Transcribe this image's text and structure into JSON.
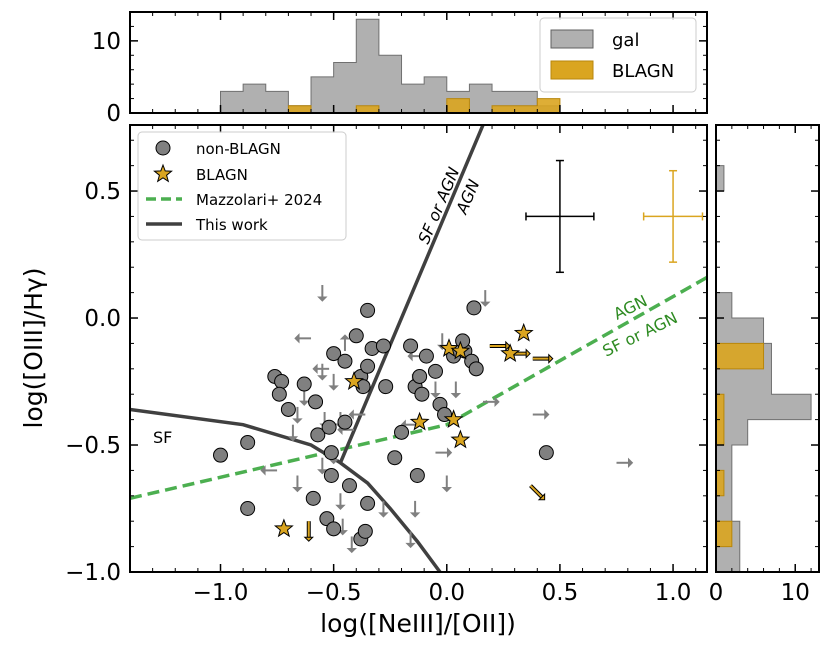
{
  "chart_data": {
    "type": "scatter",
    "main": {
      "xlabel": "log([NeIII]/[OII])",
      "ylabel": "log([OIII]/Hγ)",
      "xlim": [
        -1.4,
        1.15
      ],
      "ylim": [
        -1.0,
        0.76
      ],
      "xticks": [
        -1.0,
        -0.5,
        0.0,
        0.5,
        1.0
      ],
      "xtick_labels": [
        "−1.0",
        "−0.5",
        "0.0",
        "0.5",
        "1.0"
      ],
      "yticks": [
        -1.0,
        -0.5,
        0.0,
        0.5
      ],
      "ytick_labels": [
        "−1.0",
        "−0.5",
        "0.0",
        "0.5"
      ],
      "region_labels": {
        "sf": "SF",
        "sf_or_agn": "SF or AGN",
        "agn": "AGN"
      },
      "legend": {
        "position": "upper-left",
        "entries": [
          "non-BLAGN",
          "BLAGN",
          "Mazzolari+ 2024",
          "This work"
        ]
      },
      "series": [
        {
          "name": "non-BLAGN",
          "marker": "circle",
          "color": "#808080",
          "points": [
            [
              -1.0,
              -0.54
            ],
            [
              -0.88,
              -0.49
            ],
            [
              -0.88,
              -0.75
            ],
            [
              -0.76,
              -0.23
            ],
            [
              -0.73,
              -0.25
            ],
            [
              -0.74,
              -0.3
            ],
            [
              -0.7,
              -0.36
            ],
            [
              -0.63,
              -0.26
            ],
            [
              -0.58,
              -0.33
            ],
            [
              -0.57,
              -0.46
            ],
            [
              -0.59,
              -0.71
            ],
            [
              -0.51,
              -0.62
            ],
            [
              -0.51,
              -0.53
            ],
            [
              -0.52,
              -0.43
            ],
            [
              -0.53,
              -0.79
            ],
            [
              -0.5,
              -0.83
            ],
            [
              -0.5,
              -0.14
            ],
            [
              -0.45,
              -0.17
            ],
            [
              -0.45,
              -0.41
            ],
            [
              -0.43,
              -0.66
            ],
            [
              -0.38,
              -0.23
            ],
            [
              -0.37,
              -0.27
            ],
            [
              -0.35,
              -0.19
            ],
            [
              -0.4,
              -0.07
            ],
            [
              -0.38,
              -0.87
            ],
            [
              -0.36,
              -0.84
            ],
            [
              -0.35,
              -0.73
            ],
            [
              -0.33,
              -0.12
            ],
            [
              -0.28,
              -0.11
            ],
            [
              -0.27,
              -0.27
            ],
            [
              -0.23,
              -0.55
            ],
            [
              -0.2,
              -0.45
            ],
            [
              -0.14,
              -0.27
            ],
            [
              -0.12,
              -0.23
            ],
            [
              -0.16,
              -0.11
            ],
            [
              -0.13,
              -0.62
            ],
            [
              -0.11,
              -0.3
            ],
            [
              -0.09,
              -0.15
            ],
            [
              -0.05,
              -0.21
            ],
            [
              -0.03,
              -0.34
            ],
            [
              -0.01,
              -0.38
            ],
            [
              0.03,
              -0.15
            ],
            [
              0.08,
              -0.13
            ],
            [
              0.11,
              -0.17
            ],
            [
              0.13,
              -0.2
            ],
            [
              0.07,
              -0.09
            ],
            [
              0.12,
              0.04
            ],
            [
              0.44,
              -0.53
            ],
            [
              -0.35,
              0.03
            ]
          ]
        },
        {
          "name": "BLAGN",
          "marker": "star",
          "color": "#DAA520",
          "points": [
            [
              -0.72,
              -0.83
            ],
            [
              -0.41,
              -0.25
            ],
            [
              -0.12,
              -0.41
            ],
            [
              0.03,
              -0.4
            ],
            [
              0.01,
              -0.12
            ],
            [
              0.06,
              -0.13
            ],
            [
              0.06,
              -0.48
            ],
            [
              0.28,
              -0.14
            ],
            [
              0.34,
              -0.06
            ]
          ]
        },
        {
          "name": "non-BLAGN limits",
          "marker": "arrow",
          "color": "#808080",
          "points": [
            [
              -0.68,
              -0.42,
              "down"
            ],
            [
              -0.66,
              -0.62,
              "down"
            ],
            [
              -0.63,
              -0.28,
              "down"
            ],
            [
              -0.66,
              -0.35,
              "down"
            ],
            [
              -0.6,
              -0.08,
              "left"
            ],
            [
              -0.55,
              -0.18,
              "down"
            ],
            [
              -0.52,
              -0.2,
              "left"
            ],
            [
              -0.54,
              -0.37,
              "down"
            ],
            [
              -0.47,
              -0.37,
              "down"
            ],
            [
              -0.5,
              -0.51,
              "down"
            ],
            [
              -0.47,
              -0.69,
              "down"
            ],
            [
              -0.46,
              -0.79,
              "down"
            ],
            [
              -0.42,
              -0.86,
              "down"
            ],
            [
              -0.55,
              0.13,
              "down"
            ],
            [
              -0.5,
              -0.22,
              "down"
            ],
            [
              -0.45,
              -0.13,
              "up"
            ],
            [
              -0.41,
              -0.44,
              "left"
            ],
            [
              -0.36,
              -0.38,
              "left"
            ],
            [
              -0.28,
              -0.72,
              "down"
            ],
            [
              -0.15,
              -0.22,
              "down"
            ],
            [
              -0.13,
              -0.42,
              "left"
            ],
            [
              -0.14,
              -0.72,
              "down"
            ],
            [
              -0.16,
              -0.84,
              "down"
            ],
            [
              -0.1,
              -0.15,
              "left"
            ],
            [
              -0.05,
              -0.25,
              "down"
            ],
            [
              -0.02,
              -0.06,
              "down"
            ],
            [
              -0.05,
              -0.53,
              "right"
            ],
            [
              0.0,
              -0.62,
              "down"
            ],
            [
              0.04,
              -0.25,
              "down"
            ],
            [
              0.16,
              -0.33,
              "right"
            ],
            [
              0.17,
              0.11,
              "down"
            ],
            [
              0.38,
              -0.38,
              "right"
            ],
            [
              0.75,
              -0.57,
              "right"
            ],
            [
              -0.55,
              -0.55,
              "down"
            ],
            [
              -0.75,
              -0.6,
              "left"
            ]
          ]
        },
        {
          "name": "BLAGN limits",
          "marker": "arrow",
          "color": "#DAA520",
          "points": [
            [
              0.19,
              -0.11,
              "right"
            ],
            [
              0.28,
              -0.14,
              "right"
            ],
            [
              0.38,
              -0.16,
              "right"
            ],
            [
              -0.61,
              -0.8,
              "down"
            ],
            [
              0.37,
              -0.66,
              "down-right"
            ]
          ]
        }
      ],
      "lines": [
        {
          "name": "Mazzolari+ 2024",
          "style": "dashed",
          "color": "#4caf50",
          "x": [
            -1.4,
            0.0,
            1.15
          ],
          "y": [
            -0.71,
            -0.42,
            0.16
          ]
        },
        {
          "name": "This work",
          "style": "solid",
          "color": "#404040",
          "segments": [
            {
              "x": [
                -1.4,
                -0.9,
                -0.6,
                -0.47,
                -0.35,
                -0.25,
                -0.13,
                -0.03
              ],
              "y": [
                -0.36,
                -0.42,
                -0.5,
                -0.57,
                -0.65,
                -0.75,
                -0.88,
                -1.0
              ]
            },
            {
              "x": [
                -0.47,
                0.16
              ],
              "y": [
                -0.57,
                0.76
              ]
            }
          ]
        }
      ],
      "errorbars": [
        {
          "x": 0.5,
          "y": 0.4,
          "xerr": 0.15,
          "yerr": 0.22,
          "color": "#000000"
        },
        {
          "x": 1.0,
          "y": 0.4,
          "xerr": 0.13,
          "yerr": 0.18,
          "color": "#DAA520"
        }
      ]
    },
    "top_hist": {
      "type": "histogram",
      "yticks": [
        0,
        10
      ],
      "ytick_labels": [
        "0",
        "10"
      ],
      "ylim": [
        0,
        14
      ],
      "bin_edges": [
        -1.0,
        -0.9,
        -0.8,
        -0.7,
        -0.6,
        -0.5,
        -0.4,
        -0.3,
        -0.2,
        -0.1,
        0.0,
        0.1,
        0.2,
        0.3,
        0.4,
        0.5
      ],
      "series": [
        {
          "name": "gal",
          "color": "#B0B0B0",
          "values": [
            3,
            4,
            3,
            1,
            5,
            7,
            13,
            8,
            4,
            5,
            3,
            4,
            3,
            3,
            1
          ]
        },
        {
          "name": "BLAGN",
          "color": "#DAA520",
          "values": [
            0,
            0,
            0,
            1,
            0,
            0,
            1,
            0,
            0,
            0,
            2,
            0,
            1,
            1,
            2
          ]
        }
      ],
      "legend": {
        "position": "upper-right",
        "entries": [
          "gal",
          "BLAGN"
        ]
      }
    },
    "right_hist": {
      "type": "histogram",
      "orientation": "horizontal",
      "xticks": [
        0,
        10
      ],
      "xtick_labels": [
        "0",
        "10"
      ],
      "xlim": [
        0,
        13
      ],
      "bin_edges": [
        -1.0,
        -0.9,
        -0.8,
        -0.7,
        -0.6,
        -0.5,
        -0.4,
        -0.3,
        -0.2,
        -0.1,
        0.0,
        0.1,
        0.2,
        0.3,
        0.4,
        0.5,
        0.6
      ],
      "series": [
        {
          "name": "gal",
          "color": "#B0B0B0",
          "values": [
            3,
            3,
            2,
            2,
            2,
            4,
            12,
            7,
            7,
            6,
            2,
            0,
            0,
            0,
            0,
            1
          ]
        },
        {
          "name": "BLAGN",
          "color": "#DAA520",
          "values": [
            0,
            2,
            0,
            1,
            0,
            1,
            1,
            0,
            6,
            0,
            0,
            0,
            0,
            0,
            0,
            0
          ]
        }
      ]
    }
  }
}
